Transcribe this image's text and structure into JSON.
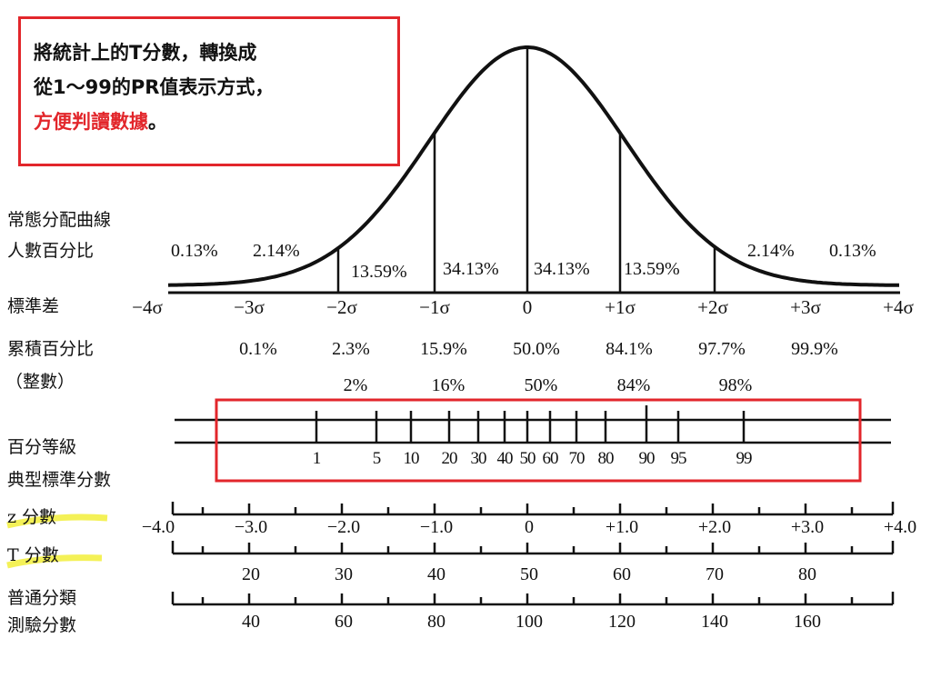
{
  "callout": {
    "line1": "將統計上的T分數，轉換成",
    "line2": "從1～99的PR值表示方式，",
    "line3_red": "方便判讀數據",
    "line3_end": "。",
    "border_color": "#e2262b"
  },
  "row_labels": {
    "normal_dist_1": "常態分配曲線",
    "normal_dist_2": "人數百分比",
    "std_dev": "標準差",
    "cumulative": "累積百分比",
    "integer": "（整數）",
    "percentile": "百分等級",
    "typical_std": "典型標準分數",
    "z_score": "z 分數",
    "t_score": "T 分數",
    "general_1": "普通分類",
    "general_2": "測驗分數"
  },
  "area_percents": {
    "left_outer": "0.13%",
    "left_second": "2.14%",
    "left_third": "13.59%",
    "left_center": "34.13%",
    "right_center": "34.13%",
    "right_third": "13.59%",
    "right_second": "2.14%",
    "right_outer": "0.13%"
  },
  "sigma_labels": [
    "−4σ",
    "−3σ",
    "−2σ",
    "−1σ",
    "0",
    "+1σ",
    "+2σ",
    "+3σ",
    "+4σ"
  ],
  "cumulative_percents": [
    "0.1%",
    "2.3%",
    "15.9%",
    "50.0%",
    "84.1%",
    "97.7%",
    "99.9%"
  ],
  "rounded_percents": [
    "2%",
    "16%",
    "50%",
    "84%",
    "98%"
  ],
  "percentile_ranks": [
    "1",
    "5",
    "10",
    "20",
    "30",
    "40",
    "50",
    "60",
    "70",
    "80",
    "90",
    "95",
    "99"
  ],
  "z_scores": [
    "−4.0",
    "−3.0",
    "−2.0",
    "−1.0",
    "0",
    "+1.0",
    "+2.0",
    "+3.0",
    "+4.0"
  ],
  "t_scores": [
    "20",
    "30",
    "40",
    "50",
    "60",
    "70",
    "80"
  ],
  "test_scores": [
    "40",
    "60",
    "80",
    "100",
    "120",
    "140",
    "160"
  ],
  "colors": {
    "highlight_red": "#e2262b",
    "marker_yellow": "#f2ef3a",
    "ink": "#111111"
  }
}
